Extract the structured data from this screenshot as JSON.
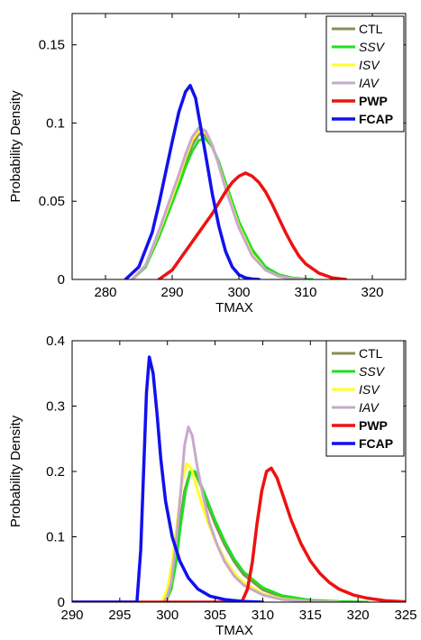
{
  "chart_data": [
    {
      "type": "line",
      "xlabel": "TMAX",
      "ylabel": "Probability Density",
      "xlim": [
        275,
        325
      ],
      "ylim": [
        0,
        0.17
      ],
      "xticks": [
        280,
        290,
        300,
        310,
        320
      ],
      "yticks": [
        0,
        0.05,
        0.1,
        0.15
      ],
      "ytick_labels": [
        "0",
        "0.05",
        "0.1",
        "0.15"
      ],
      "grid": false,
      "legend_position": "top-right",
      "series": [
        {
          "name": "CTL",
          "color": "#8c8c5a",
          "italic": false,
          "bold": false,
          "width": 3,
          "x": [
            284,
            286,
            288,
            290,
            291,
            292,
            293,
            294,
            295,
            296,
            297,
            298,
            300,
            302,
            304,
            306,
            308,
            310
          ],
          "y": [
            0,
            0.008,
            0.028,
            0.05,
            0.062,
            0.075,
            0.086,
            0.093,
            0.092,
            0.085,
            0.074,
            0.06,
            0.035,
            0.017,
            0.007,
            0.002,
            0.0005,
            0
          ]
        },
        {
          "name": "SSV",
          "color": "#22dd22",
          "italic": true,
          "bold": false,
          "width": 3,
          "x": [
            284,
            286,
            288,
            290,
            291,
            292,
            293,
            294,
            295,
            296,
            297,
            298,
            300,
            302,
            304,
            306,
            308,
            310,
            311
          ],
          "y": [
            0,
            0.008,
            0.027,
            0.049,
            0.06,
            0.072,
            0.082,
            0.089,
            0.09,
            0.085,
            0.075,
            0.062,
            0.037,
            0.019,
            0.008,
            0.003,
            0.001,
            0.0003,
            0
          ]
        },
        {
          "name": "ISV",
          "color": "#ffff22",
          "italic": true,
          "bold": false,
          "width": 3,
          "x": [
            284,
            286,
            288,
            290,
            291,
            292,
            293,
            294,
            295,
            296,
            297,
            298,
            300,
            302,
            304,
            306,
            308,
            310
          ],
          "y": [
            0,
            0.009,
            0.03,
            0.053,
            0.065,
            0.078,
            0.089,
            0.095,
            0.094,
            0.086,
            0.073,
            0.059,
            0.034,
            0.016,
            0.006,
            0.002,
            0.0005,
            0
          ]
        },
        {
          "name": "IAV",
          "color": "#c9a8cf",
          "italic": true,
          "bold": false,
          "width": 3,
          "x": [
            284,
            286,
            288,
            290,
            291,
            292,
            293,
            294,
            295,
            296,
            297,
            298,
            300,
            302,
            304,
            306,
            308,
            310
          ],
          "y": [
            0,
            0.009,
            0.031,
            0.055,
            0.067,
            0.08,
            0.091,
            0.097,
            0.095,
            0.086,
            0.073,
            0.058,
            0.033,
            0.015,
            0.006,
            0.002,
            0.0005,
            0
          ]
        },
        {
          "name": "PWP",
          "color": "#ee1111",
          "italic": false,
          "bold": true,
          "width": 3.5,
          "x": [
            288,
            290,
            292,
            294,
            295,
            296,
            297,
            298,
            299,
            300,
            301,
            302,
            303,
            304,
            305,
            306,
            307,
            308,
            309,
            310,
            312,
            314,
            316
          ],
          "y": [
            0,
            0.006,
            0.018,
            0.03,
            0.036,
            0.042,
            0.049,
            0.056,
            0.062,
            0.066,
            0.068,
            0.066,
            0.062,
            0.056,
            0.048,
            0.039,
            0.03,
            0.022,
            0.015,
            0.01,
            0.004,
            0.001,
            0
          ]
        },
        {
          "name": "FCAP",
          "color": "#1111ee",
          "italic": false,
          "bold": true,
          "width": 3.5,
          "x": [
            283,
            285,
            287,
            288,
            289,
            290,
            291,
            292,
            292.7,
            293.5,
            294,
            295,
            296,
            297,
            298,
            299,
            300,
            301,
            302,
            303
          ],
          "y": [
            0,
            0.008,
            0.03,
            0.048,
            0.068,
            0.088,
            0.107,
            0.12,
            0.124,
            0.116,
            0.104,
            0.08,
            0.055,
            0.034,
            0.018,
            0.008,
            0.003,
            0.001,
            0.0003,
            0
          ]
        }
      ]
    },
    {
      "type": "line",
      "xlabel": "TMAX",
      "ylabel": "Probability Density",
      "xlim": [
        290,
        325
      ],
      "ylim": [
        0,
        0.4
      ],
      "xticks": [
        290,
        295,
        300,
        305,
        310,
        315,
        320,
        325
      ],
      "yticks": [
        0,
        0.1,
        0.2,
        0.3,
        0.4
      ],
      "ytick_labels": [
        "0",
        "0.1",
        "0.2",
        "0.3",
        "0.4"
      ],
      "grid": false,
      "legend_position": "top-right",
      "series": [
        {
          "name": "CTL",
          "color": "#8c8c5a",
          "italic": false,
          "bold": false,
          "width": 3,
          "x": [
            299.7,
            300.3,
            300.8,
            301.3,
            301.8,
            302.4,
            303,
            303.6,
            304.2,
            305,
            306,
            307,
            308,
            310,
            312,
            315,
            318,
            320
          ],
          "y": [
            0,
            0.02,
            0.06,
            0.12,
            0.17,
            0.2,
            0.195,
            0.175,
            0.15,
            0.12,
            0.088,
            0.062,
            0.042,
            0.019,
            0.008,
            0.002,
            0.0005,
            0
          ]
        },
        {
          "name": "SSV",
          "color": "#22dd22",
          "italic": true,
          "bold": false,
          "width": 3,
          "x": [
            299.8,
            300.4,
            300.9,
            301.4,
            301.9,
            302.4,
            302.9,
            303.5,
            304.2,
            305,
            306,
            307,
            308,
            310,
            312,
            315,
            318,
            321
          ],
          "y": [
            0,
            0.02,
            0.06,
            0.12,
            0.17,
            0.2,
            0.2,
            0.18,
            0.155,
            0.125,
            0.093,
            0.066,
            0.046,
            0.022,
            0.01,
            0.003,
            0.001,
            0
          ]
        },
        {
          "name": "ISV",
          "color": "#ffff22",
          "italic": true,
          "bold": false,
          "width": 3,
          "x": [
            299.4,
            300,
            300.5,
            301,
            301.5,
            302,
            302.5,
            303,
            303.6,
            304.3,
            305,
            306,
            307,
            308,
            310,
            312,
            315,
            318
          ],
          "y": [
            0,
            0.02,
            0.06,
            0.12,
            0.18,
            0.212,
            0.205,
            0.18,
            0.15,
            0.12,
            0.095,
            0.066,
            0.045,
            0.03,
            0.013,
            0.005,
            0.001,
            0
          ]
        },
        {
          "name": "IAV",
          "color": "#c9a8cf",
          "italic": true,
          "bold": false,
          "width": 3,
          "x": [
            299.8,
            300.4,
            300.9,
            301.4,
            301.8,
            302.2,
            302.6,
            303.1,
            303.7,
            304.4,
            305.2,
            306,
            307,
            308,
            310,
            312,
            315,
            318
          ],
          "y": [
            0,
            0.03,
            0.09,
            0.17,
            0.24,
            0.268,
            0.255,
            0.21,
            0.165,
            0.122,
            0.088,
            0.062,
            0.04,
            0.026,
            0.011,
            0.004,
            0.001,
            0
          ]
        },
        {
          "name": "PWP",
          "color": "#ee1111",
          "italic": false,
          "bold": true,
          "width": 3.5,
          "x": [
            290,
            307.8,
            308.4,
            308.9,
            309.4,
            309.9,
            310.4,
            310.9,
            311.5,
            312.2,
            313,
            314,
            315,
            316,
            317,
            318,
            319.5,
            321,
            323,
            325
          ],
          "y": [
            0,
            0,
            0.02,
            0.06,
            0.12,
            0.17,
            0.2,
            0.205,
            0.19,
            0.16,
            0.125,
            0.09,
            0.063,
            0.044,
            0.03,
            0.02,
            0.011,
            0.006,
            0.002,
            0.0005
          ]
        },
        {
          "name": "FCAP",
          "color": "#1111ee",
          "italic": false,
          "bold": true,
          "width": 3.5,
          "x": [
            290,
            296.8,
            297.2,
            297.5,
            297.8,
            298.1,
            298.5,
            298.9,
            299.3,
            299.8,
            300.5,
            301.3,
            302.2,
            303.2,
            304.5,
            306,
            308,
            310
          ],
          "y": [
            0,
            0,
            0.08,
            0.2,
            0.32,
            0.375,
            0.35,
            0.29,
            0.22,
            0.155,
            0.1,
            0.063,
            0.037,
            0.02,
            0.009,
            0.004,
            0.001,
            0
          ]
        }
      ]
    }
  ]
}
